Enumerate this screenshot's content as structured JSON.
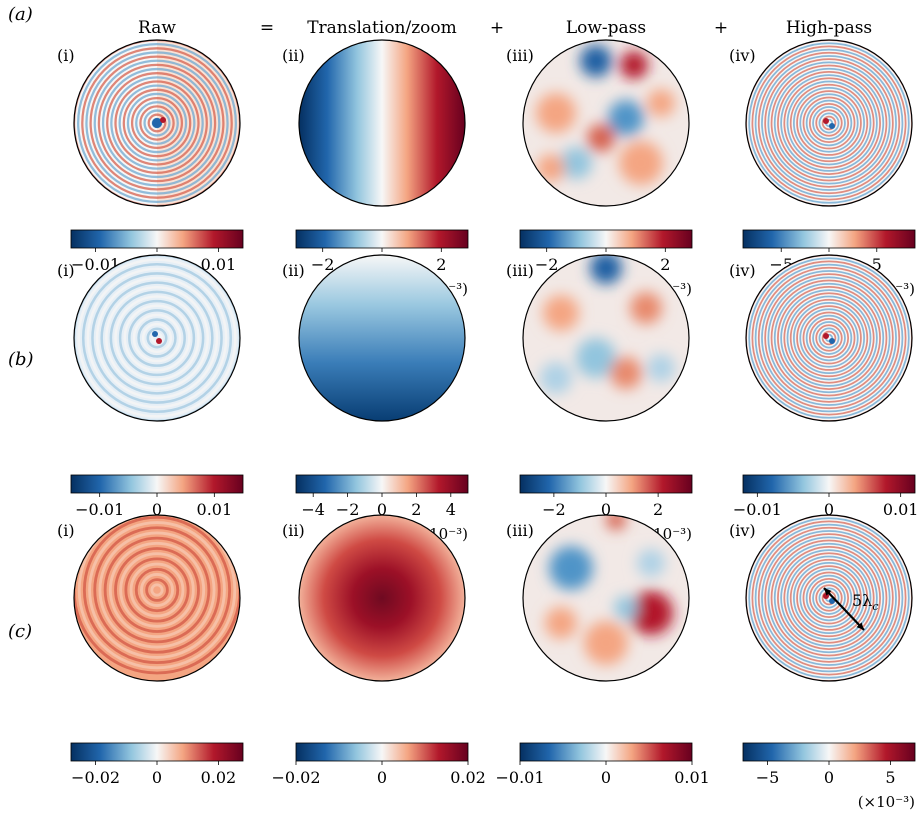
{
  "figure": {
    "column_headers": [
      {
        "label": "Raw"
      },
      {
        "label": "="
      },
      {
        "label": "Translation/zoom"
      },
      {
        "label": "+"
      },
      {
        "label": "Low-pass"
      },
      {
        "label": "+"
      },
      {
        "label": "High-pass"
      }
    ],
    "rows": [
      {
        "row_label": "(a)",
        "panels": [
          {
            "sub_label": "(i)",
            "pattern": "rings-asym-red-right",
            "colorbar": {
              "ticks": [
                "−0.01",
                "0",
                "0.01"
              ],
              "tick_values": [
                -0.01,
                0,
                0.01
              ],
              "range": [
                -0.014,
                0.014
              ],
              "multiplier": ""
            }
          },
          {
            "sub_label": "(ii)",
            "pattern": "horizontal-gradient",
            "colorbar": {
              "ticks": [
                "−2",
                "0",
                "2"
              ],
              "tick_values": [
                -2,
                0,
                2
              ],
              "range": [
                -2.9,
                2.9
              ],
              "multiplier": "(×10⁻³)"
            }
          },
          {
            "sub_label": "(iii)",
            "pattern": "blobs-a",
            "colorbar": {
              "ticks": [
                "−2",
                "0",
                "2"
              ],
              "tick_values": [
                -2,
                0,
                2
              ],
              "range": [
                -2.9,
                2.9
              ],
              "multiplier": "(×10⁻³)"
            }
          },
          {
            "sub_label": "(iv)",
            "pattern": "rings-fine",
            "colorbar": {
              "ticks": [
                "−5",
                "0",
                "5"
              ],
              "tick_values": [
                -5,
                0,
                5
              ],
              "range": [
                -9,
                9
              ],
              "multiplier": "(×10⁻³)"
            }
          }
        ]
      },
      {
        "row_label": "(b)",
        "panels": [
          {
            "sub_label": "(i)",
            "pattern": "rings-faint-blue",
            "colorbar": {
              "ticks": [
                "−0.01",
                "0",
                "0.01"
              ],
              "tick_values": [
                -0.01,
                0,
                0.01
              ],
              "range": [
                -0.015,
                0.015
              ],
              "multiplier": ""
            }
          },
          {
            "sub_label": "(ii)",
            "pattern": "vertical-gradient-blue",
            "colorbar": {
              "ticks": [
                "−4",
                "−2",
                "0",
                "2",
                "4"
              ],
              "tick_values": [
                -4,
                -2,
                0,
                2,
                4
              ],
              "range": [
                -5,
                5
              ],
              "multiplier": "(×10⁻³)"
            }
          },
          {
            "sub_label": "(iii)",
            "pattern": "blobs-b",
            "colorbar": {
              "ticks": [
                "−2",
                "0",
                "2"
              ],
              "tick_values": [
                -2,
                0,
                2
              ],
              "range": [
                -3.3,
                3.3
              ],
              "multiplier": "(×10⁻³)"
            }
          },
          {
            "sub_label": "(iv)",
            "pattern": "rings-fine",
            "colorbar": {
              "ticks": [
                "−0.01",
                "0",
                "0.01"
              ],
              "tick_values": [
                -0.01,
                0,
                0.01
              ],
              "range": [
                -0.012,
                0.012
              ],
              "multiplier": ""
            }
          }
        ]
      },
      {
        "row_label": "(c)",
        "panels": [
          {
            "sub_label": "(i)",
            "pattern": "rings-red-off",
            "colorbar": {
              "ticks": [
                "−0.02",
                "0",
                "0.02"
              ],
              "tick_values": [
                -0.02,
                0,
                0.02
              ],
              "range": [
                -0.028,
                0.028
              ],
              "multiplier": ""
            }
          },
          {
            "sub_label": "(ii)",
            "pattern": "radial-red",
            "colorbar": {
              "ticks": [
                "−0.02",
                "0",
                "0.02"
              ],
              "tick_values": [
                -0.02,
                0,
                0.02
              ],
              "range": [
                -0.02,
                0.02
              ],
              "multiplier": ""
            }
          },
          {
            "sub_label": "(iii)",
            "pattern": "blobs-c",
            "colorbar": {
              "ticks": [
                "−0.01",
                "0",
                "0.01"
              ],
              "tick_values": [
                -0.01,
                0,
                0.01
              ],
              "range": [
                -0.01,
                0.01
              ],
              "multiplier": ""
            }
          },
          {
            "sub_label": "(iv)",
            "pattern": "rings-fine",
            "colorbar": {
              "ticks": [
                "−5",
                "0",
                "5"
              ],
              "tick_values": [
                -5,
                0,
                5
              ],
              "range": [
                -7,
                7
              ],
              "multiplier": "(×10⁻³)"
            },
            "annotation": "5λ_c"
          }
        ]
      }
    ],
    "colors": {
      "deep_blue": "#053061",
      "blue": "#2166ac",
      "light_blue": "#92c5de",
      "white": "#f7f7f7",
      "light_red": "#f4a582",
      "red": "#b2182b",
      "deep_red": "#67001f"
    },
    "colormap_name": "RdBu_r"
  }
}
